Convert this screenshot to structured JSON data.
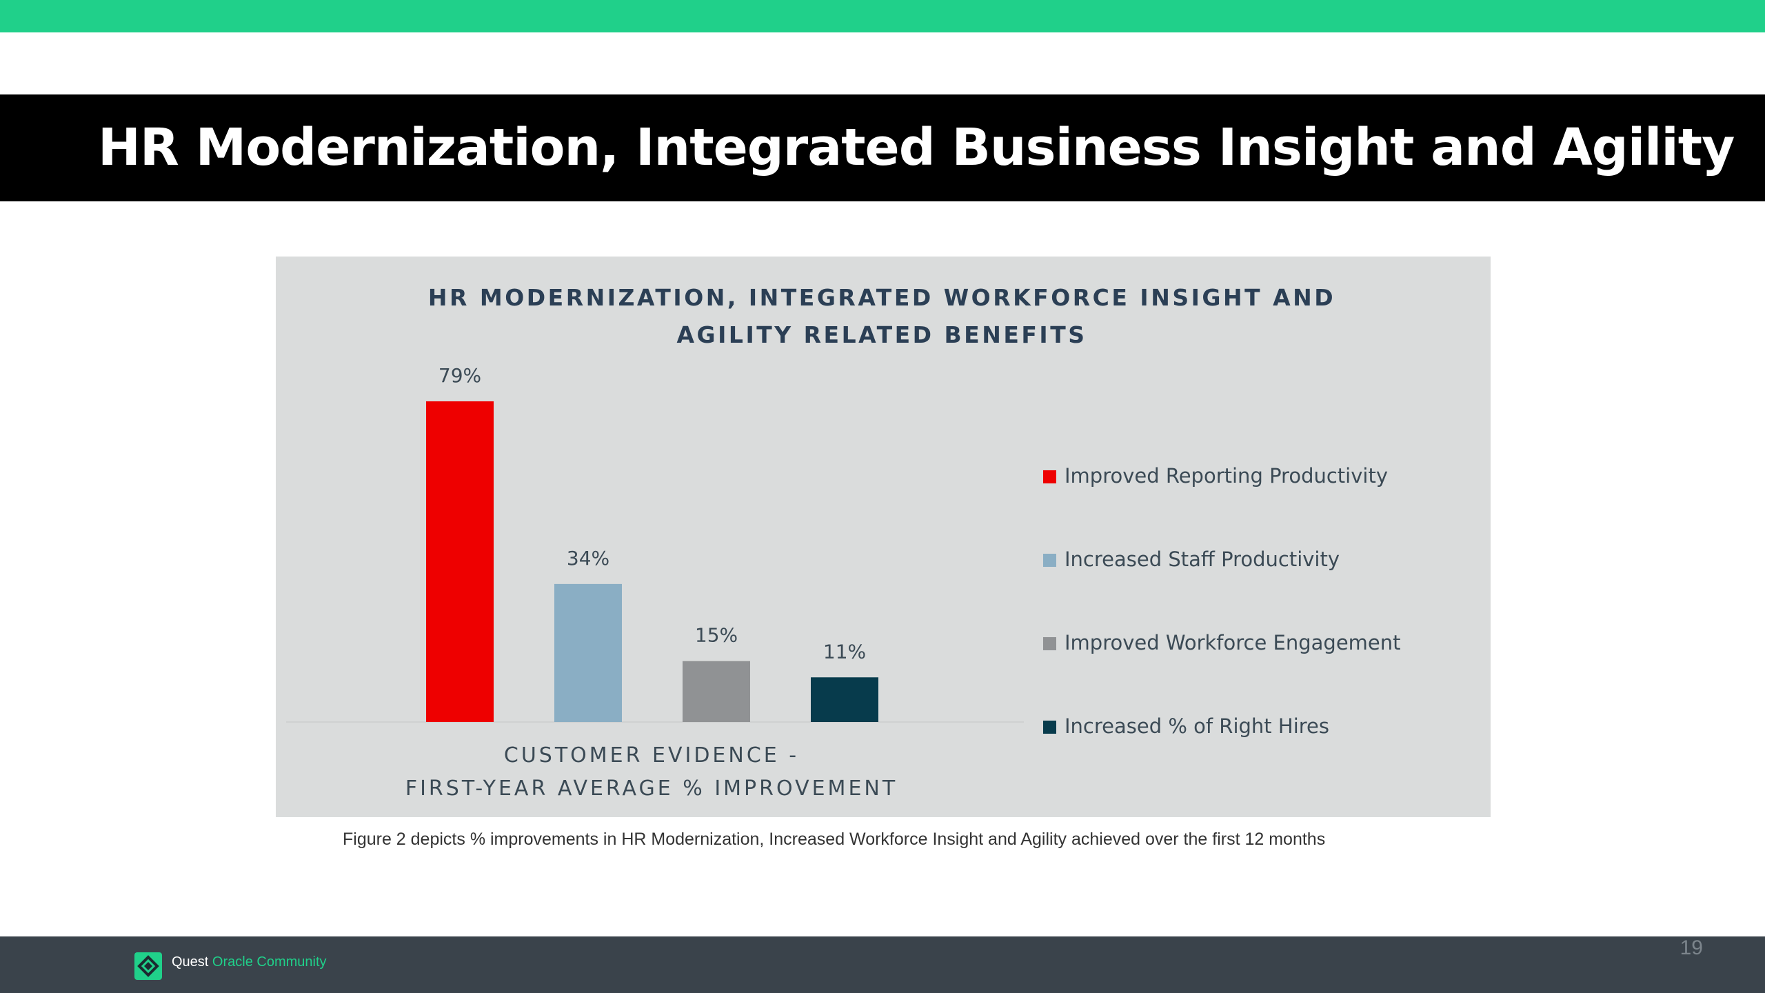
{
  "slide": {
    "title": "HR Modernization, Integrated Business Insight and Agility",
    "caption": "Figure 2 depicts % improvements in HR Modernization, Increased Workforce Insight and Agility achieved over the first 12 months",
    "page_number": "19"
  },
  "footer": {
    "brand_prefix": "Quest",
    "brand_suffix": "Oracle Community",
    "logo_icon": "quest-diamond-icon"
  },
  "colors": {
    "accent": "#20d08a",
    "title_band": "#000000",
    "chart_background": "#dadcdc",
    "footer": "#3a434b",
    "chart_title": "#2b3f55"
  },
  "chart_data": {
    "type": "bar",
    "title": "HR MODERNIZATION, INTEGRATED WORKFORCE INSIGHT AND AGILITY RELATED BENEFITS",
    "title_lines": [
      "HR MODERNIZATION, INTEGRATED WORKFORCE INSIGHT AND",
      "AGILITY RELATED BENEFITS"
    ],
    "xlabel_lines": [
      "CUSTOMER EVIDENCE -",
      "FIRST-YEAR AVERAGE % IMPROVEMENT"
    ],
    "ylabel": "",
    "ylim": [
      0,
      80
    ],
    "grid": false,
    "legend_position": "right",
    "series": [
      {
        "name": "Improved Reporting Productivity",
        "value": 79,
        "label": "79%",
        "color": "#ee0000"
      },
      {
        "name": "Increased Staff Productivity",
        "value": 34,
        "label": "34%",
        "color": "#8aaec4"
      },
      {
        "name": "Improved Workforce Engagement",
        "value": 15,
        "label": "15%",
        "color": "#909294"
      },
      {
        "name": "Increased % of Right Hires",
        "value": 11,
        "label": "11%",
        "color": "#073b4c"
      }
    ]
  }
}
